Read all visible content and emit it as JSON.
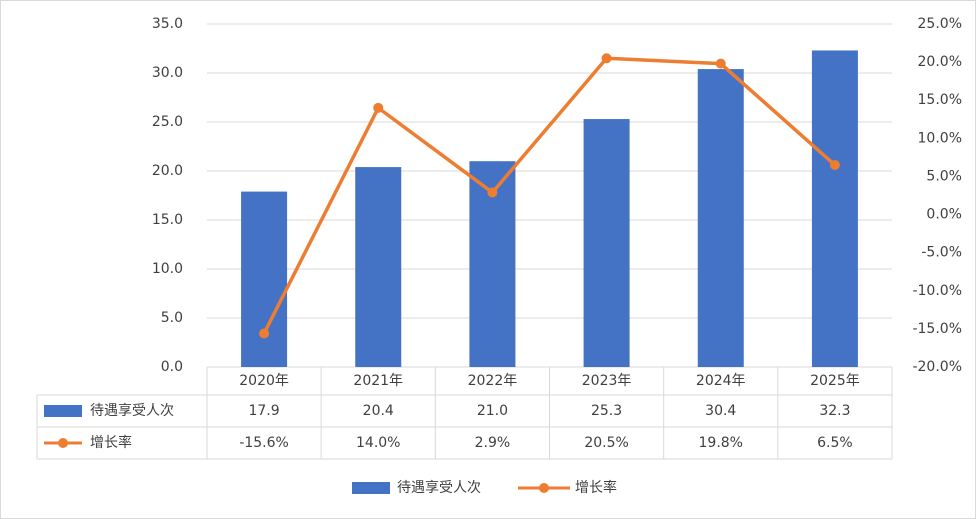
{
  "chart_data": {
    "type": "bar",
    "categories": [
      "2020年",
      "2021年",
      "2022年",
      "2023年",
      "2024年",
      "2025年"
    ],
    "series": [
      {
        "name": "待遇享受人次",
        "type": "bar",
        "color": "#4472c4",
        "values": [
          17.9,
          20.4,
          21.0,
          25.3,
          30.4,
          32.3
        ],
        "value_labels": [
          "17.9",
          "20.4",
          "21.0",
          "25.3",
          "30.4",
          "32.3"
        ]
      },
      {
        "name": "增长率",
        "type": "line",
        "axis": "y2",
        "color": "#ed7d31",
        "values": [
          -15.6,
          14.0,
          2.9,
          20.5,
          19.8,
          6.5
        ],
        "value_labels": [
          "-15.6%",
          "14.0%",
          "2.9%",
          "20.5%",
          "19.8%",
          "6.5%"
        ]
      }
    ],
    "ylim": [
      0,
      35
    ],
    "yticks": [
      {
        "value": 0,
        "label": "0.0"
      },
      {
        "value": 5,
        "label": "5.0"
      },
      {
        "value": 10,
        "label": "10.0"
      },
      {
        "value": 15,
        "label": "15.0"
      },
      {
        "value": 20,
        "label": "20.0"
      },
      {
        "value": 25,
        "label": "25.0"
      },
      {
        "value": 30,
        "label": "30.0"
      },
      {
        "value": 35,
        "label": "35.0"
      }
    ],
    "y2lim": [
      -20,
      25
    ],
    "y2ticks": [
      {
        "value": -20,
        "label": "-20.0%"
      },
      {
        "value": -15,
        "label": "-15.0%"
      },
      {
        "value": -10,
        "label": "-10.0%"
      },
      {
        "value": -5,
        "label": "-5.0%"
      },
      {
        "value": 0,
        "label": "0.0%"
      },
      {
        "value": 5,
        "label": "5.0%"
      },
      {
        "value": 10,
        "label": "10.0%"
      },
      {
        "value": 15,
        "label": "15.0%"
      },
      {
        "value": 20,
        "label": "20.0%"
      },
      {
        "value": 25,
        "label": "25.0%"
      }
    ],
    "grid": true,
    "data_table": true,
    "legend": "bottom"
  }
}
